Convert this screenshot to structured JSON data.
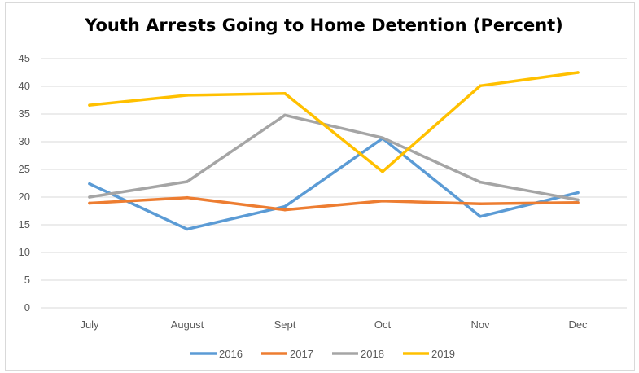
{
  "chart_data": {
    "type": "line",
    "title": "Youth Arrests Going to Home Detention (Percent)",
    "xlabel": "",
    "ylabel": "",
    "categories": [
      "July",
      "August",
      "Sept",
      "Oct",
      "Nov",
      "Dec"
    ],
    "ylim": [
      0,
      45
    ],
    "yticks": [
      "0",
      "5",
      "10",
      "15",
      "20",
      "25",
      "30",
      "35",
      "40",
      "45"
    ],
    "grid": true,
    "legend_position": "bottom",
    "series": [
      {
        "name": "2016",
        "color": "#5b9bd5",
        "values": [
          22.4,
          14.2,
          18.3,
          30.6,
          16.5,
          20.8
        ]
      },
      {
        "name": "2017",
        "color": "#ed7d31",
        "values": [
          18.9,
          19.9,
          17.7,
          19.3,
          18.8,
          19.0
        ]
      },
      {
        "name": "2018",
        "color": "#a5a5a5",
        "values": [
          20.0,
          22.8,
          34.8,
          30.7,
          22.7,
          19.5
        ]
      },
      {
        "name": "2019",
        "color": "#ffc000",
        "values": [
          36.6,
          38.4,
          38.7,
          24.6,
          40.1,
          42.5
        ]
      }
    ]
  }
}
